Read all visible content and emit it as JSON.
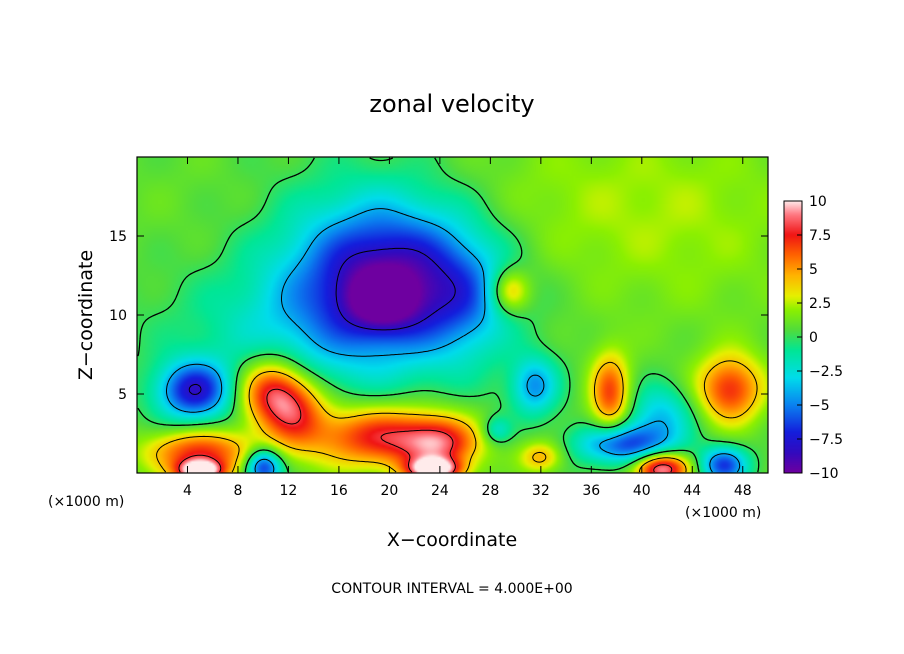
{
  "chart_data": {
    "type": "heatmap",
    "title": "zonal velocity",
    "xlabel": "X−coordinate",
    "ylabel": "Z−coordinate",
    "x_unit": "(×1000 m)",
    "z_unit": "(×1000 m)",
    "xlim": [
      0,
      50
    ],
    "ylim": [
      0,
      20
    ],
    "x_ticks": [
      4,
      8,
      12,
      16,
      20,
      24,
      28,
      32,
      36,
      40,
      44,
      48
    ],
    "x_tick_labels": [
      "4",
      "8",
      "12",
      "16",
      "20",
      "24",
      "28",
      "32",
      "36",
      "40",
      "44",
      "48"
    ],
    "y_ticks": [
      5,
      10,
      15
    ],
    "y_tick_labels": [
      "5",
      "10",
      "15"
    ],
    "colorbar": {
      "range": [
        -10,
        10
      ],
      "ticks": [
        10,
        7.5,
        5,
        2.5,
        0,
        -2.5,
        -5,
        -7.5,
        -10
      ],
      "tick_labels": [
        "10",
        "7.5",
        "5",
        "2.5",
        "0",
        "−2.5",
        "−5",
        "−7.5",
        "−10"
      ]
    },
    "contour_interval_text": "CONTOUR INTERVAL = 4.000E+00",
    "features": [
      {
        "x": 20,
        "z": 12.5,
        "value": -8,
        "sx": 5.0,
        "sz": 3.2
      },
      {
        "x": 19.5,
        "z": 10.8,
        "value": -4,
        "sx": 2.0,
        "sz": 1.3
      },
      {
        "x": 18,
        "z": 12,
        "value": -2,
        "sx": 7,
        "sz": 5
      },
      {
        "x": 26,
        "z": 11,
        "value": -3,
        "sx": 2.5,
        "sz": 2.5
      },
      {
        "x": 4.5,
        "z": 5.2,
        "value": -8,
        "sx": 2.0,
        "sz": 1.3
      },
      {
        "x": 10.5,
        "z": 5.2,
        "value": 6.5,
        "sx": 1.8,
        "sz": 1.5
      },
      {
        "x": 12.5,
        "z": 4.0,
        "value": 5.5,
        "sx": 1.8,
        "sz": 1.6
      },
      {
        "x": 19,
        "z": 2.3,
        "value": 7,
        "sx": 4.0,
        "sz": 1.4
      },
      {
        "x": 24,
        "z": 1.8,
        "value": 6,
        "sx": 2.2,
        "sz": 1.2
      },
      {
        "x": 5,
        "z": 1.3,
        "value": 6.5,
        "sx": 3.0,
        "sz": 1.0
      },
      {
        "x": 5,
        "z": 0.1,
        "value": 10,
        "sx": 1.3,
        "sz": 0.5
      },
      {
        "x": 10,
        "z": 0.4,
        "value": -8,
        "sx": 1.0,
        "sz": 0.8
      },
      {
        "x": 23.5,
        "z": 0.2,
        "value": 9,
        "sx": 1.5,
        "sz": 0.5
      },
      {
        "x": 29.5,
        "z": 11.5,
        "value": 4.5,
        "sx": 1.1,
        "sz": 1.0
      },
      {
        "x": 31.5,
        "z": 5.5,
        "value": -5,
        "sx": 1.3,
        "sz": 1.3
      },
      {
        "x": 28.5,
        "z": 2.7,
        "value": -3,
        "sx": 0.8,
        "sz": 0.6
      },
      {
        "x": 37.5,
        "z": 5.0,
        "value": 6,
        "sx": 1.1,
        "sz": 1.8
      },
      {
        "x": 32,
        "z": 1.0,
        "value": 4,
        "sx": 1.2,
        "sz": 0.7
      },
      {
        "x": 38.5,
        "z": 1.8,
        "value": -7,
        "sx": 2.5,
        "sz": 0.9
      },
      {
        "x": 41.5,
        "z": 3.6,
        "value": -4,
        "sx": 1.8,
        "sz": 1.4
      },
      {
        "x": 41.5,
        "z": 0.3,
        "value": 9.5,
        "sx": 1.5,
        "sz": 0.7
      },
      {
        "x": 47,
        "z": 5.3,
        "value": 6.5,
        "sx": 1.8,
        "sz": 1.5
      },
      {
        "x": 46.5,
        "z": 0.5,
        "value": -7,
        "sx": 1.3,
        "sz": 0.8
      },
      {
        "x": 12,
        "z": 9,
        "value": -2,
        "sx": 7,
        "sz": 3
      },
      {
        "x": 33,
        "z": 17,
        "value": 1.2,
        "sx": 8,
        "sz": 4
      },
      {
        "x": 45,
        "z": 16,
        "value": 1.2,
        "sx": 7,
        "sz": 5
      },
      {
        "x": 6,
        "z": 16,
        "value": 0.5,
        "sx": 6,
        "sz": 4
      }
    ]
  }
}
